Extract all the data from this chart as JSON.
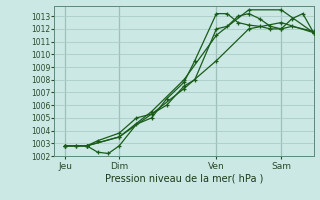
{
  "xlabel": "Pression niveau de la mer( hPa )",
  "bg_color": "#cce8e4",
  "grid_color": "#aaccc8",
  "line_color": "#1a5c1a",
  "vline_color": "#5a8a7a",
  "ylim": [
    1002,
    1013.8
  ],
  "yticks": [
    1002,
    1003,
    1004,
    1005,
    1006,
    1007,
    1008,
    1009,
    1010,
    1011,
    1012,
    1013
  ],
  "xlim": [
    0,
    12.0
  ],
  "day_positions": [
    0.5,
    3.0,
    7.5,
    10.5
  ],
  "vline_positions": [
    0.5,
    3.0,
    7.5,
    10.5
  ],
  "day_labels": [
    "Jeu",
    "Dim",
    "Ven",
    "Sam"
  ],
  "series1_x": [
    0.5,
    1.0,
    1.5,
    2.0,
    3.0,
    3.8,
    4.5,
    5.2,
    6.0,
    6.5,
    7.5,
    8.0,
    8.5,
    9.0,
    9.5,
    10.0,
    10.5,
    11.0,
    11.5,
    12.0
  ],
  "series1_y": [
    1002.8,
    1002.8,
    1002.8,
    1003.2,
    1003.8,
    1005.0,
    1005.3,
    1006.0,
    1007.5,
    1008.0,
    1012.0,
    1012.2,
    1013.0,
    1013.2,
    1012.8,
    1012.2,
    1012.0,
    1012.8,
    1013.2,
    1011.7
  ],
  "series2_x": [
    0.5,
    1.0,
    1.5,
    2.0,
    2.5,
    3.0,
    3.8,
    4.5,
    5.2,
    6.0,
    6.5,
    7.5,
    8.0,
    8.5,
    9.0,
    9.5,
    10.0,
    10.5,
    11.0,
    12.0
  ],
  "series2_y": [
    1002.8,
    1002.8,
    1002.8,
    1002.3,
    1002.2,
    1002.8,
    1004.5,
    1005.0,
    1006.5,
    1007.8,
    1009.5,
    1013.2,
    1013.2,
    1012.5,
    1012.3,
    1012.2,
    1012.0,
    1012.0,
    1012.2,
    1011.8
  ],
  "series3_x": [
    0.5,
    1.5,
    3.0,
    4.5,
    6.0,
    7.5,
    9.0,
    10.5,
    12.0
  ],
  "series3_y": [
    1002.8,
    1002.8,
    1003.5,
    1005.5,
    1008.0,
    1011.5,
    1013.5,
    1013.5,
    1011.7
  ],
  "series4_x": [
    0.5,
    1.5,
    3.0,
    4.5,
    6.0,
    7.5,
    9.0,
    10.5,
    12.0
  ],
  "series4_y": [
    1002.8,
    1002.8,
    1003.5,
    1005.3,
    1007.3,
    1009.5,
    1012.0,
    1012.5,
    1011.7
  ]
}
